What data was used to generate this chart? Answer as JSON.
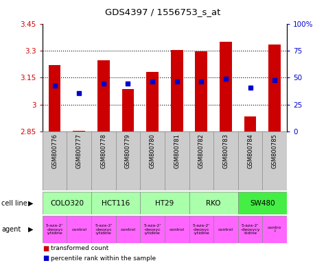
{
  "title": "GDS4397 / 1556753_s_at",
  "samples": [
    "GSM800776",
    "GSM800777",
    "GSM800778",
    "GSM800779",
    "GSM800780",
    "GSM800781",
    "GSM800782",
    "GSM800783",
    "GSM800784",
    "GSM800785"
  ],
  "red_values": [
    3.22,
    2.855,
    3.245,
    3.085,
    3.18,
    3.305,
    3.295,
    3.35,
    2.935,
    3.335
  ],
  "blue_values": [
    3.105,
    3.065,
    3.115,
    3.115,
    3.13,
    3.13,
    3.13,
    3.145,
    3.095,
    3.135
  ],
  "bar_base": 2.85,
  "ylim_left": [
    2.85,
    3.45
  ],
  "yticks_left": [
    2.85,
    3.0,
    3.15,
    3.3,
    3.45
  ],
  "ytick_labels_left": [
    "2.85",
    "3",
    "3.15",
    "3.3",
    "3.45"
  ],
  "ylim_right": [
    0,
    100
  ],
  "yticks_right": [
    0,
    25,
    50,
    75,
    100
  ],
  "ytick_labels_right": [
    "0",
    "25",
    "50",
    "75",
    "100%"
  ],
  "cell_lines": [
    {
      "name": "COLO320",
      "span": [
        0,
        2
      ]
    },
    {
      "name": "HCT116",
      "span": [
        2,
        4
      ]
    },
    {
      "name": "HT29",
      "span": [
        4,
        6
      ]
    },
    {
      "name": "RKO",
      "span": [
        6,
        8
      ]
    },
    {
      "name": "SW480",
      "span": [
        8,
        10
      ]
    }
  ],
  "cell_line_colors": [
    "#aaffaa",
    "#aaffaa",
    "#aaffaa",
    "#aaffaa",
    "#44ee44"
  ],
  "agent_labels": [
    "5-aza-2'\n-deoxyc\n-ytidine",
    "control",
    "5-aza-2'\n-deoxyc\n-ytidine",
    "control",
    "5-aza-2'\n-deoxyc\n-ytidine",
    "control",
    "5-aza-2'\n-deoxyc\n-ytidine",
    "control",
    "5-aza-2'\n-deoxycy\n-tidine",
    "contro\nl"
  ],
  "bar_color": "#cc0000",
  "dot_color": "#0000cc",
  "bg_color": "#ffffff",
  "label_color_left": "#cc0000",
  "label_color_right": "#0000cc",
  "legend_red": "transformed count",
  "legend_blue": "percentile rank within the sample",
  "cell_line_label": "cell line",
  "agent_label": "agent",
  "grid_ticks": [
    3.0,
    3.15,
    3.3
  ]
}
